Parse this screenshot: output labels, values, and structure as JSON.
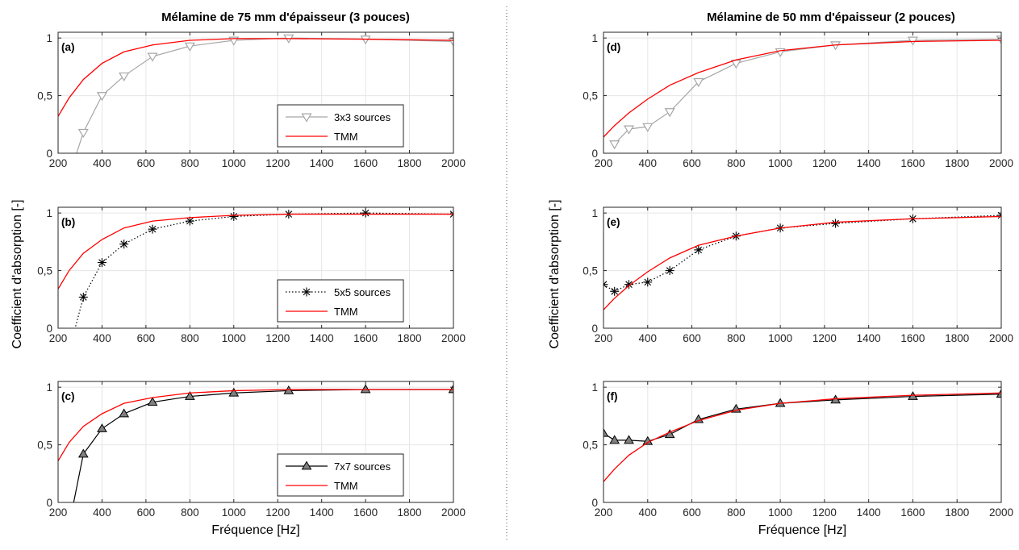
{
  "figure": {
    "ylabel": "Coefficient d'absorption [-]",
    "xlabel": "Fréquence [Hz]",
    "left_title": "Mélamine de 75 mm d'épaisseur (3 pouces)",
    "right_title": "Mélamine de 50 mm d'épaisseur (2 pouces)",
    "colors": {
      "tmm": "#ff0000",
      "grid": "#e6e6e6",
      "axis": "#262626",
      "marker_fill": "#808080",
      "series_3x3": "#a6a6a6",
      "series_5x5": "#000000",
      "series_7x7": "#000000"
    }
  },
  "chart_data": [
    {
      "type": "line",
      "panel": "(a)",
      "title": "Mélamine de 75 mm d'épaisseur (3 pouces)",
      "xlabel": "",
      "ylabel": "",
      "xlim": [
        200,
        2000
      ],
      "ylim": [
        0,
        1.05
      ],
      "xticks": [
        "200",
        "400",
        "600",
        "800",
        "1000",
        "1200",
        "1400",
        "1600",
        "1800",
        "2000"
      ],
      "yticks": [
        "0",
        "0,5",
        "1"
      ],
      "grid": true,
      "legend": "center-right",
      "series": [
        {
          "name": "3x3 sources",
          "style": "gray-triangle-down",
          "x": [
            250,
            315,
            400,
            500,
            630,
            800,
            1000,
            1250,
            1600,
            2000
          ],
          "y": [
            -0.2,
            0.18,
            0.5,
            0.67,
            0.84,
            0.93,
            0.98,
            1.0,
            0.99,
            0.97
          ]
        },
        {
          "name": "TMM",
          "style": "red",
          "x": [
            200,
            250,
            315,
            400,
            500,
            630,
            800,
            1000,
            1250,
            1600,
            2000
          ],
          "y": [
            0.32,
            0.48,
            0.64,
            0.78,
            0.88,
            0.94,
            0.98,
            0.995,
            0.995,
            0.99,
            0.98
          ]
        }
      ]
    },
    {
      "type": "line",
      "panel": "(b)",
      "title": "",
      "xlabel": "",
      "ylabel": "",
      "xlim": [
        200,
        2000
      ],
      "ylim": [
        0,
        1.05
      ],
      "xticks": [
        "200",
        "400",
        "600",
        "800",
        "1000",
        "1200",
        "1400",
        "1600",
        "1800",
        "2000"
      ],
      "yticks": [
        "0",
        "0,5",
        "1"
      ],
      "grid": true,
      "legend": "center-right",
      "series": [
        {
          "name": "5x5 sources",
          "style": "black-star-dotted",
          "x": [
            250,
            315,
            400,
            500,
            630,
            800,
            1000,
            1250,
            1600,
            2000
          ],
          "y": [
            -0.2,
            0.27,
            0.57,
            0.73,
            0.86,
            0.93,
            0.97,
            0.99,
            1.0,
            0.99
          ]
        },
        {
          "name": "TMM",
          "style": "red",
          "x": [
            200,
            250,
            315,
            400,
            500,
            630,
            800,
            1000,
            1250,
            1600,
            2000
          ],
          "y": [
            0.34,
            0.5,
            0.65,
            0.77,
            0.87,
            0.93,
            0.96,
            0.98,
            0.99,
            0.99,
            0.99
          ]
        }
      ]
    },
    {
      "type": "line",
      "panel": "(c)",
      "title": "",
      "xlabel": "Fréquence [Hz]",
      "ylabel": "",
      "xlim": [
        200,
        2000
      ],
      "ylim": [
        0,
        1.05
      ],
      "xticks": [
        "200",
        "400",
        "600",
        "800",
        "1000",
        "1200",
        "1400",
        "1600",
        "1800",
        "2000"
      ],
      "yticks": [
        "0",
        "0,5",
        "1"
      ],
      "grid": true,
      "legend": "center-right",
      "series": [
        {
          "name": "7x7 sources",
          "style": "black-triangle-up",
          "x": [
            250,
            315,
            400,
            500,
            630,
            800,
            1000,
            1250,
            1600,
            2000
          ],
          "y": [
            -0.2,
            0.42,
            0.64,
            0.77,
            0.87,
            0.92,
            0.95,
            0.97,
            0.98,
            0.98
          ]
        },
        {
          "name": "TMM",
          "style": "red",
          "x": [
            200,
            250,
            315,
            400,
            500,
            630,
            800,
            1000,
            1250,
            1600,
            2000
          ],
          "y": [
            0.36,
            0.52,
            0.66,
            0.77,
            0.86,
            0.91,
            0.95,
            0.97,
            0.98,
            0.98,
            0.98
          ]
        }
      ]
    },
    {
      "type": "line",
      "panel": "(d)",
      "title": "Mélamine de 50 mm d'épaisseur (2 pouces)",
      "xlabel": "",
      "ylabel": "",
      "xlim": [
        200,
        2000
      ],
      "ylim": [
        0,
        1.05
      ],
      "xticks": [
        "200",
        "400",
        "600",
        "800",
        "1000",
        "1200",
        "1400",
        "1600",
        "1800",
        "2000"
      ],
      "yticks": [
        "0",
        "0,5",
        "1"
      ],
      "grid": true,
      "legend": "none",
      "series": [
        {
          "name": "",
          "style": "gray-triangle-down",
          "x": [
            250,
            315,
            400,
            500,
            630,
            800,
            1000,
            1250,
            1600,
            2000
          ],
          "y": [
            0.08,
            0.21,
            0.23,
            0.36,
            0.62,
            0.78,
            0.88,
            0.94,
            0.98,
            0.99
          ]
        },
        {
          "name": "",
          "style": "red",
          "x": [
            200,
            250,
            315,
            400,
            500,
            630,
            800,
            1000,
            1250,
            1600,
            2000
          ],
          "y": [
            0.14,
            0.24,
            0.35,
            0.47,
            0.59,
            0.7,
            0.81,
            0.89,
            0.94,
            0.97,
            0.98
          ]
        }
      ]
    },
    {
      "type": "line",
      "panel": "(e)",
      "title": "",
      "xlabel": "",
      "ylabel": "",
      "xlim": [
        200,
        2000
      ],
      "ylim": [
        0,
        1.05
      ],
      "xticks": [
        "200",
        "400",
        "600",
        "800",
        "1000",
        "1200",
        "1400",
        "1600",
        "1800",
        "2000"
      ],
      "yticks": [
        "0",
        "0,5",
        "1"
      ],
      "grid": true,
      "legend": "none",
      "series": [
        {
          "name": "",
          "style": "black-star-dotted",
          "x": [
            200,
            250,
            315,
            400,
            500,
            630,
            800,
            1000,
            1250,
            1600,
            2000
          ],
          "y": [
            0.38,
            0.32,
            0.38,
            0.4,
            0.5,
            0.68,
            0.8,
            0.87,
            0.91,
            0.95,
            0.98
          ]
        },
        {
          "name": "",
          "style": "red",
          "x": [
            200,
            250,
            315,
            400,
            500,
            630,
            800,
            1000,
            1250,
            1600,
            2000
          ],
          "y": [
            0.16,
            0.26,
            0.37,
            0.49,
            0.61,
            0.72,
            0.8,
            0.87,
            0.92,
            0.95,
            0.97
          ]
        }
      ]
    },
    {
      "type": "line",
      "panel": "(f)",
      "title": "",
      "xlabel": "Fréquence [Hz]",
      "ylabel": "",
      "xlim": [
        200,
        2000
      ],
      "ylim": [
        0,
        1.05
      ],
      "xticks": [
        "200",
        "400",
        "600",
        "800",
        "1000",
        "1200",
        "1400",
        "1600",
        "1800",
        "2000"
      ],
      "yticks": [
        "0",
        "0,5",
        "1"
      ],
      "grid": true,
      "legend": "none",
      "series": [
        {
          "name": "",
          "style": "black-triangle-up",
          "x": [
            200,
            250,
            315,
            400,
            500,
            630,
            800,
            1000,
            1250,
            1600,
            2000
          ],
          "y": [
            0.6,
            0.54,
            0.54,
            0.53,
            0.59,
            0.72,
            0.81,
            0.86,
            0.89,
            0.92,
            0.94
          ]
        },
        {
          "name": "",
          "style": "red",
          "x": [
            200,
            250,
            315,
            400,
            500,
            630,
            800,
            1000,
            1250,
            1600,
            2000
          ],
          "y": [
            0.18,
            0.29,
            0.41,
            0.52,
            0.61,
            0.71,
            0.8,
            0.86,
            0.9,
            0.93,
            0.95
          ]
        }
      ]
    }
  ]
}
